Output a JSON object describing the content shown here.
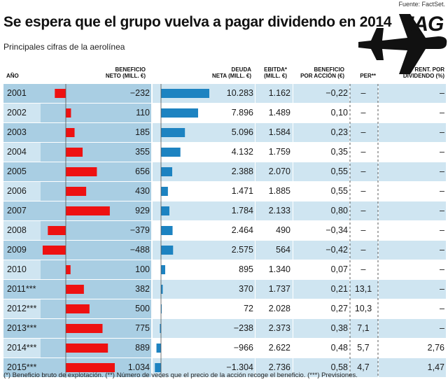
{
  "source": "Fuente: FactSet.",
  "title": "Se espera que el grupo vuelva a pagar dividendo en 2014",
  "subtitle": "Principales cifras de la aerolínea",
  "logo": "IAG",
  "headers": {
    "anio": "AÑO",
    "beneficio_neto": [
      "BENEFICIO",
      "NETO (MILL. €)"
    ],
    "deuda_neta": [
      "DEUDA",
      "NETA (MILL. €)"
    ],
    "ebitda": [
      "EBITDA*",
      "(MILL. €)"
    ],
    "bpa": [
      "BENEFICIO",
      "POR ACCIÓN (€)"
    ],
    "per": "PER**",
    "rent_dividendo": [
      "RENT. POR",
      "DIVIDENDO (%)"
    ]
  },
  "colors": {
    "profit_bar": "#ee1111",
    "debt_bar": "#1d83c1",
    "band_dark": "#a9cee3",
    "band_light": "#cfe5f1"
  },
  "chart_data": {
    "type": "table",
    "columns": [
      "Año",
      "Beneficio neto (mill. €)",
      "Deuda neta (mill. €)",
      "Ebitda* (mill. €)",
      "Beneficio por acción (€)",
      "PER**",
      "Rent. por dividendo (%)"
    ],
    "rows": [
      {
        "year": "2001",
        "beneficio": -232,
        "beneficio_label": "−232",
        "deuda": 10283,
        "deuda_label": "10.283",
        "ebitda": "1.162",
        "bpa": "−0,22",
        "per": "–",
        "rent": "–"
      },
      {
        "year": "2002",
        "beneficio": 110,
        "beneficio_label": "110",
        "deuda": 7896,
        "deuda_label": "7.896",
        "ebitda": "1.489",
        "bpa": "0,10",
        "per": "–",
        "rent": "–"
      },
      {
        "year": "2003",
        "beneficio": 185,
        "beneficio_label": "185",
        "deuda": 5096,
        "deuda_label": "5.096",
        "ebitda": "1.584",
        "bpa": "0,23",
        "per": "–",
        "rent": "–"
      },
      {
        "year": "2004",
        "beneficio": 355,
        "beneficio_label": "355",
        "deuda": 4132,
        "deuda_label": "4.132",
        "ebitda": "1.759",
        "bpa": "0,35",
        "per": "–",
        "rent": "–"
      },
      {
        "year": "2005",
        "beneficio": 656,
        "beneficio_label": "656",
        "deuda": 2388,
        "deuda_label": "2.388",
        "ebitda": "2.070",
        "bpa": "0,55",
        "per": "–",
        "rent": "–"
      },
      {
        "year": "2006",
        "beneficio": 430,
        "beneficio_label": "430",
        "deuda": 1471,
        "deuda_label": "1.471",
        "ebitda": "1.885",
        "bpa": "0,55",
        "per": "–",
        "rent": "–"
      },
      {
        "year": "2007",
        "beneficio": 929,
        "beneficio_label": "929",
        "deuda": 1784,
        "deuda_label": "1.784",
        "ebitda": "2.133",
        "bpa": "0,80",
        "per": "–",
        "rent": "–"
      },
      {
        "year": "2008",
        "beneficio": -379,
        "beneficio_label": "−379",
        "deuda": 2464,
        "deuda_label": "2.464",
        "ebitda": "490",
        "bpa": "−0,34",
        "per": "–",
        "rent": "–"
      },
      {
        "year": "2009",
        "beneficio": -488,
        "beneficio_label": "−488",
        "deuda": 2575,
        "deuda_label": "2.575",
        "ebitda": "564",
        "bpa": "−0,42",
        "per": "–",
        "rent": "–"
      },
      {
        "year": "2010",
        "beneficio": 100,
        "beneficio_label": "100",
        "deuda": 895,
        "deuda_label": "895",
        "ebitda": "1.340",
        "bpa": "0,07",
        "per": "–",
        "rent": "–"
      },
      {
        "year": "2011***",
        "beneficio": 382,
        "beneficio_label": "382",
        "deuda": 370,
        "deuda_label": "370",
        "ebitda": "1.737",
        "bpa": "0,21",
        "per": "13,1",
        "rent": "–"
      },
      {
        "year": "2012***",
        "beneficio": 500,
        "beneficio_label": "500",
        "deuda": 72,
        "deuda_label": "72",
        "ebitda": "2.028",
        "bpa": "0,27",
        "per": "10,3",
        "rent": "–"
      },
      {
        "year": "2013***",
        "beneficio": 775,
        "beneficio_label": "775",
        "deuda": -238,
        "deuda_label": "−238",
        "ebitda": "2.373",
        "bpa": "0,38",
        "per": "7,1",
        "rent": "–"
      },
      {
        "year": "2014***",
        "beneficio": 889,
        "beneficio_label": "889",
        "deuda": -966,
        "deuda_label": "−966",
        "ebitda": "2.622",
        "bpa": "0,48",
        "per": "5,7",
        "rent": "2,76"
      },
      {
        "year": "2015***",
        "beneficio": 1034,
        "beneficio_label": "1.034",
        "deuda": -1304,
        "deuda_label": "−1.304",
        "ebitda": "2.736",
        "bpa": "0,58",
        "per": "4,7",
        "rent": "1,47"
      }
    ]
  },
  "footnote": "(*) Beneficio bruto de explotación. (**) Número de veces que el precio de la acción recoge el beneficio. (***) Previsiones."
}
